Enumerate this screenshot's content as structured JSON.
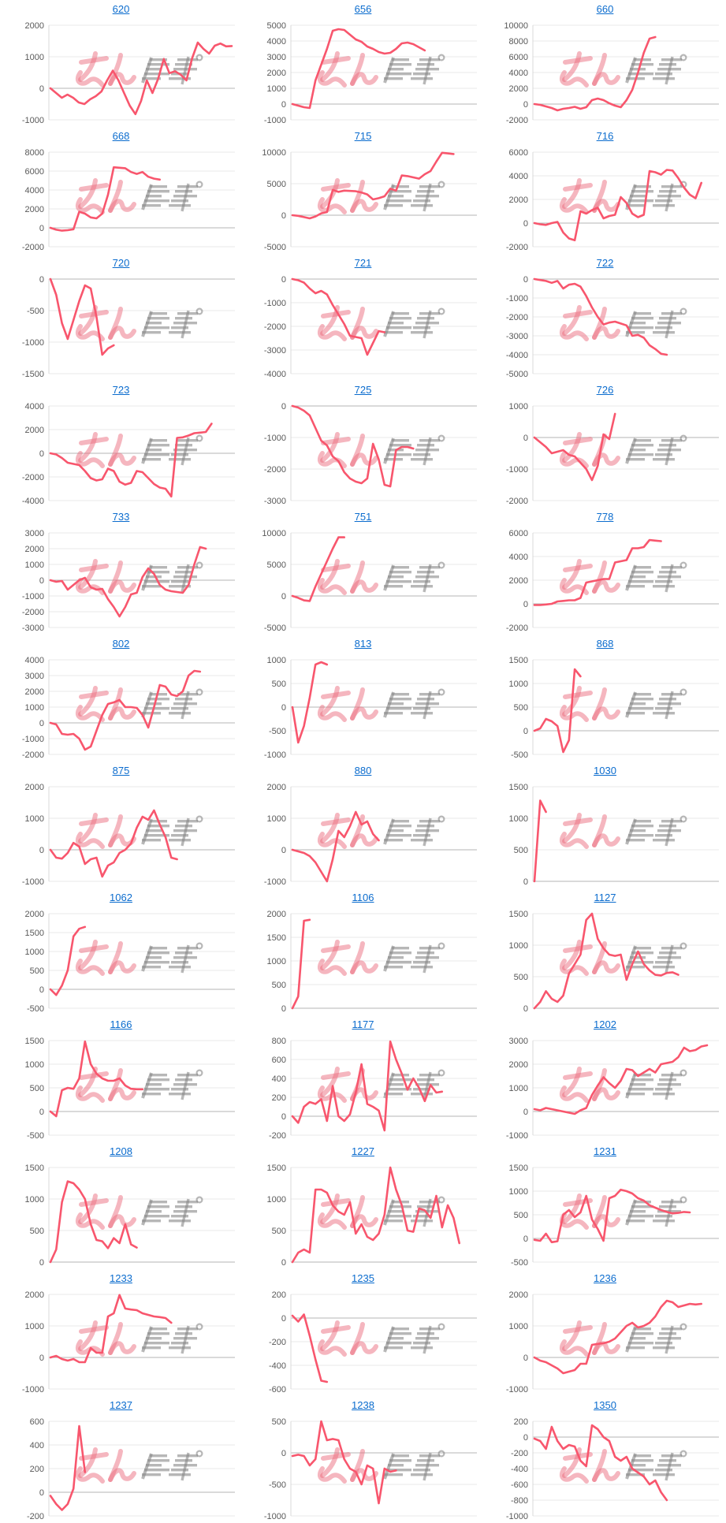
{
  "page": {
    "columns": 3,
    "rows": 12,
    "background": "#ffffff"
  },
  "style": {
    "line_color": "#f8566d",
    "gridline_color": "#e9e9e9",
    "zero_line_color": "#b5b5b5",
    "axis_line_color": "#d9d9d9",
    "tick_color": "#595959",
    "title_color": "#0b6cce",
    "watermark_pink": "rgba(236,110,128,0.50)",
    "watermark_gray": "rgba(135,135,135,0.60)"
  },
  "watermark": {
    "pink_text": "みん",
    "gray_text": "レポ"
  },
  "chart_data": [
    {
      "type": "line",
      "title": "620",
      "ylim": [
        -1000,
        2000
      ],
      "ystep": 1000,
      "values": [
        0,
        -150,
        -300,
        -200,
        -300,
        -450,
        -500,
        -350,
        -250,
        -100,
        250,
        560,
        250,
        -150,
        -550,
        -820,
        -400,
        250,
        -150,
        300,
        930,
        480,
        540,
        430,
        250,
        950,
        1450,
        1250,
        1100,
        1350,
        1420,
        1330,
        1340
      ]
    },
    {
      "type": "line",
      "title": "656",
      "ylim": [
        -1000,
        5000
      ],
      "ystep": 1000,
      "values": [
        0,
        -100,
        -200,
        -250,
        1500,
        2500,
        3500,
        4650,
        4750,
        4700,
        4400,
        4100,
        3950,
        3650,
        3500,
        3300,
        3200,
        3250,
        3500,
        3850,
        3900,
        3800,
        3600,
        3400
      ]
    },
    {
      "type": "line",
      "title": "660",
      "ylim": [
        -2000,
        10000
      ],
      "ystep": 2000,
      "values": [
        0,
        -100,
        -300,
        -500,
        -800,
        -600,
        -500,
        -350,
        -600,
        -400,
        500,
        700,
        500,
        100,
        -200,
        -400,
        500,
        1800,
        4000,
        6500,
        8300,
        8500
      ]
    },
    {
      "type": "line",
      "title": "668",
      "ylim": [
        -2000,
        8000
      ],
      "ystep": 2000,
      "values": [
        0,
        -200,
        -300,
        -250,
        -150,
        1700,
        1500,
        1100,
        1000,
        1500,
        3500,
        6400,
        6350,
        6300,
        5900,
        5700,
        5900,
        5400,
        5200,
        5100
      ]
    },
    {
      "type": "line",
      "title": "715",
      "ylim": [
        -5000,
        10000
      ],
      "ystep": 5000,
      "values": [
        0,
        -100,
        -300,
        -500,
        -200,
        300,
        500,
        4000,
        3700,
        3900,
        3850,
        3800,
        3600,
        3300,
        2500,
        2700,
        3000,
        4200,
        3900,
        6300,
        6200,
        6000,
        5800,
        6500,
        7000,
        8500,
        9900,
        9800,
        9700
      ]
    },
    {
      "type": "line",
      "title": "716",
      "ylim": [
        -2000,
        6000
      ],
      "ystep": 2000,
      "values": [
        0,
        -100,
        -150,
        0,
        100,
        -800,
        -1300,
        -1450,
        1000,
        800,
        1100,
        1300,
        400,
        600,
        700,
        2200,
        1700,
        800,
        500,
        700,
        4400,
        4300,
        4100,
        4500,
        4450,
        3800,
        3000,
        2400,
        2100,
        3400
      ]
    },
    {
      "type": "line",
      "title": "720",
      "ylim": [
        -1500,
        0
      ],
      "ystep": 500,
      "values": [
        0,
        -250,
        -700,
        -950,
        -650,
        -350,
        -100,
        -150,
        -600,
        -1200,
        -1100,
        -1050
      ]
    },
    {
      "type": "line",
      "title": "721",
      "ylim": [
        -4000,
        0
      ],
      "ystep": 1000,
      "values": [
        0,
        -50,
        -150,
        -400,
        -600,
        -500,
        -650,
        -1100,
        -1500,
        -1900,
        -2400,
        -2450,
        -2500,
        -3200,
        -2700,
        -2200,
        -2250
      ]
    },
    {
      "type": "line",
      "title": "722",
      "ylim": [
        -5000,
        0
      ],
      "ystep": 1000,
      "values": [
        0,
        -50,
        -100,
        -200,
        -100,
        -500,
        -300,
        -250,
        -400,
        -900,
        -1500,
        -2000,
        -2400,
        -2300,
        -2250,
        -2350,
        -2450,
        -3000,
        -2950,
        -3100,
        -3500,
        -3700,
        -3950,
        -4000
      ]
    },
    {
      "type": "line",
      "title": "723",
      "ylim": [
        -4000,
        4000
      ],
      "ystep": 2000,
      "values": [
        0,
        -100,
        -400,
        -800,
        -900,
        -1000,
        -1500,
        -2100,
        -2300,
        -2200,
        -1300,
        -1500,
        -2400,
        -2650,
        -2500,
        -1500,
        -1600,
        -2100,
        -2600,
        -2900,
        -3000,
        -3650,
        1300,
        1350,
        1500,
        1700,
        1750,
        1800,
        2500
      ]
    },
    {
      "type": "line",
      "title": "725",
      "ylim": [
        -3000,
        0
      ],
      "ystep": 1000,
      "values": [
        0,
        -50,
        -150,
        -300,
        -700,
        -1100,
        -1250,
        -1600,
        -1750,
        -2100,
        -2300,
        -2400,
        -2450,
        -2300,
        -1200,
        -1700,
        -2500,
        -2550,
        -1400,
        -1300,
        -1300,
        -1350
      ]
    },
    {
      "type": "line",
      "title": "726",
      "ylim": [
        -2000,
        1000
      ],
      "ystep": 1000,
      "values": [
        0,
        -150,
        -300,
        -500,
        -450,
        -400,
        -550,
        -600,
        -800,
        -1000,
        -1350,
        -900,
        100,
        -50,
        750
      ]
    },
    {
      "type": "line",
      "title": "733",
      "ylim": [
        -3000,
        3000
      ],
      "ystep": 1000,
      "values": [
        0,
        -100,
        -50,
        -600,
        -300,
        0,
        150,
        -450,
        -600,
        -550,
        -1200,
        -1700,
        -2300,
        -1700,
        -900,
        -800,
        200,
        750,
        400,
        -300,
        -600,
        -700,
        -750,
        -800,
        -300,
        1000,
        2100,
        2000
      ]
    },
    {
      "type": "line",
      "title": "751",
      "ylim": [
        -5000,
        10000
      ],
      "ystep": 5000,
      "values": [
        0,
        -300,
        -700,
        -800,
        1500,
        3500,
        5500,
        7500,
        9300,
        9300
      ]
    },
    {
      "type": "line",
      "title": "778",
      "ylim": [
        -2000,
        6000
      ],
      "ystep": 2000,
      "values": [
        -100,
        -100,
        -50,
        0,
        200,
        250,
        300,
        300,
        500,
        1800,
        1900,
        2000,
        2100,
        2100,
        3500,
        3600,
        3700,
        4700,
        4700,
        4800,
        5400,
        5350,
        5300
      ]
    },
    {
      "type": "line",
      "title": "802",
      "ylim": [
        -2000,
        4000
      ],
      "ystep": 1000,
      "values": [
        0,
        -100,
        -700,
        -750,
        -700,
        -1000,
        -1700,
        -1500,
        -500,
        500,
        1200,
        1300,
        1450,
        1000,
        1000,
        950,
        500,
        -300,
        1000,
        2400,
        2300,
        1800,
        1700,
        2000,
        3000,
        3300,
        3250
      ]
    },
    {
      "type": "line",
      "title": "813",
      "ylim": [
        -1000,
        1000
      ],
      "ystep": 500,
      "values": [
        0,
        -750,
        -400,
        200,
        900,
        950,
        900
      ]
    },
    {
      "type": "line",
      "title": "868",
      "ylim": [
        -500,
        1500
      ],
      "ystep": 500,
      "values": [
        0,
        50,
        250,
        200,
        100,
        -450,
        -200,
        1300,
        1150
      ]
    },
    {
      "type": "line",
      "title": "875",
      "ylim": [
        -1000,
        2000
      ],
      "ystep": 1000,
      "values": [
        0,
        -250,
        -280,
        -100,
        220,
        100,
        -450,
        -300,
        -250,
        -850,
        -500,
        -400,
        -100,
        0,
        200,
        700,
        1050,
        950,
        1250,
        800,
        400,
        -250,
        -300
      ]
    },
    {
      "type": "line",
      "title": "880",
      "ylim": [
        -1000,
        2000
      ],
      "ystep": 1000,
      "values": [
        0,
        -50,
        -100,
        -200,
        -400,
        -700,
        -1000,
        -300,
        600,
        400,
        750,
        1200,
        800,
        900,
        500,
        300
      ]
    },
    {
      "type": "line",
      "title": "1030",
      "ylim": [
        0,
        1500
      ],
      "ystep": 500,
      "values": [
        0,
        1280,
        1100
      ]
    },
    {
      "type": "line",
      "title": "1062",
      "ylim": [
        -500,
        2000
      ],
      "ystep": 500,
      "values": [
        0,
        -150,
        100,
        500,
        1400,
        1600,
        1650
      ]
    },
    {
      "type": "line",
      "title": "1106",
      "ylim": [
        0,
        2000
      ],
      "ystep": 500,
      "values": [
        0,
        250,
        1850,
        1870
      ]
    },
    {
      "type": "line",
      "title": "1127",
      "ylim": [
        0,
        1500
      ],
      "ystep": 500,
      "values": [
        0,
        100,
        270,
        150,
        100,
        200,
        550,
        700,
        850,
        1400,
        1500,
        1100,
        950,
        850,
        830,
        850,
        450,
        700,
        900,
        700,
        600,
        530,
        520,
        560,
        570,
        530
      ]
    },
    {
      "type": "line",
      "title": "1166",
      "ylim": [
        -500,
        1500
      ],
      "ystep": 500,
      "values": [
        0,
        -100,
        450,
        500,
        480,
        700,
        1480,
        1000,
        800,
        700,
        650,
        650,
        700,
        550,
        480,
        470,
        470
      ]
    },
    {
      "type": "line",
      "title": "1177",
      "ylim": [
        -200,
        800
      ],
      "ystep": 200,
      "values": [
        0,
        -70,
        100,
        150,
        130,
        180,
        -50,
        320,
        0,
        -50,
        20,
        250,
        550,
        130,
        100,
        60,
        -150,
        790,
        600,
        450,
        280,
        400,
        300,
        160,
        330,
        250,
        260
      ]
    },
    {
      "type": "line",
      "title": "1202",
      "ylim": [
        -1000,
        3000
      ],
      "ystep": 1000,
      "values": [
        100,
        50,
        150,
        100,
        50,
        0,
        -50,
        -100,
        50,
        150,
        700,
        1100,
        1450,
        1200,
        1000,
        1300,
        1800,
        1750,
        1500,
        1650,
        1800,
        1650,
        2000,
        2050,
        2100,
        2300,
        2700,
        2550,
        2600,
        2750,
        2800
      ]
    },
    {
      "type": "line",
      "title": "1208",
      "ylim": [
        0,
        1500
      ],
      "ystep": 500,
      "values": [
        0,
        200,
        950,
        1280,
        1250,
        1150,
        1000,
        600,
        350,
        330,
        220,
        380,
        300,
        600,
        280,
        230
      ]
    },
    {
      "type": "line",
      "title": "1227",
      "ylim": [
        0,
        1500
      ],
      "ystep": 500,
      "values": [
        0,
        150,
        200,
        150,
        1150,
        1150,
        1100,
        900,
        800,
        750,
        950,
        450,
        600,
        400,
        350,
        450,
        750,
        1500,
        1150,
        900,
        500,
        480,
        850,
        820,
        700,
        1050,
        550,
        900,
        700,
        300
      ]
    },
    {
      "type": "line",
      "title": "1231",
      "ylim": [
        -500,
        1500
      ],
      "ystep": 500,
      "values": [
        -30,
        -50,
        100,
        -80,
        -60,
        500,
        600,
        450,
        550,
        900,
        400,
        200,
        -50,
        850,
        900,
        1030,
        1000,
        950,
        850,
        800,
        700,
        650,
        600,
        560,
        530,
        540,
        560,
        550
      ]
    },
    {
      "type": "line",
      "title": "1233",
      "ylim": [
        -1000,
        2000
      ],
      "ystep": 1000,
      "values": [
        0,
        50,
        -50,
        -100,
        -50,
        -150,
        -150,
        300,
        150,
        150,
        1300,
        1400,
        1980,
        1550,
        1520,
        1500,
        1400,
        1350,
        1300,
        1280,
        1250,
        1100
      ]
    },
    {
      "type": "line",
      "title": "1235",
      "ylim": [
        -600,
        200
      ],
      "ystep": 200,
      "values": [
        20,
        -30,
        30,
        -150,
        -350,
        -530,
        -540
      ]
    },
    {
      "type": "line",
      "title": "1236",
      "ylim": [
        -1000,
        2000
      ],
      "ystep": 1000,
      "values": [
        0,
        -100,
        -150,
        -250,
        -350,
        -500,
        -450,
        -400,
        -200,
        -200,
        400,
        430,
        450,
        500,
        600,
        800,
        1000,
        1100,
        950,
        1000,
        1100,
        1300,
        1600,
        1800,
        1750,
        1600,
        1650,
        1700,
        1680,
        1700
      ]
    },
    {
      "type": "line",
      "title": "1237",
      "ylim": [
        -200,
        600
      ],
      "ystep": 200,
      "values": [
        -30,
        -100,
        -150,
        -100,
        30,
        560,
        170
      ]
    },
    {
      "type": "line",
      "title": "1238",
      "ylim": [
        -1000,
        500
      ],
      "ystep": 500,
      "values": [
        -50,
        -30,
        -50,
        -200,
        -100,
        500,
        200,
        220,
        200,
        -100,
        -250,
        -300,
        -500,
        -200,
        -250,
        -800,
        -250,
        -300,
        -280
      ]
    },
    {
      "type": "line",
      "title": "1350",
      "ylim": [
        -1000,
        200
      ],
      "ystep": 200,
      "values": [
        -20,
        -50,
        -150,
        130,
        -50,
        -150,
        -100,
        -120,
        -300,
        -370,
        150,
        100,
        0,
        -50,
        -250,
        -300,
        -250,
        -400,
        -450,
        -500,
        -600,
        -550,
        -700,
        -800
      ]
    }
  ]
}
